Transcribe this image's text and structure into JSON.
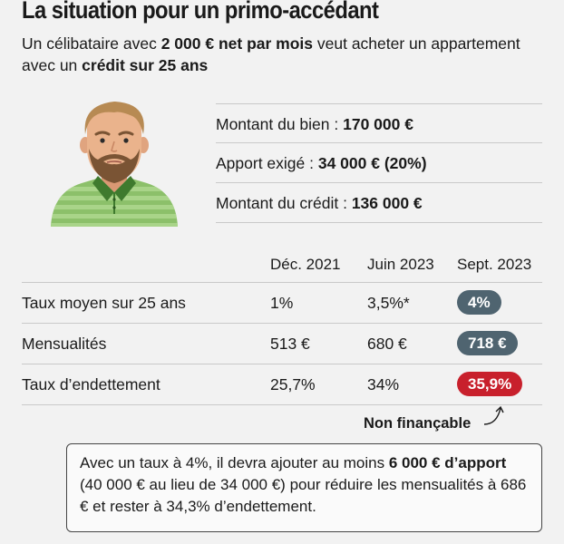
{
  "title": "La situation pour un primo-accédant",
  "subtitle": {
    "p1": "Un célibataire avec ",
    "b1": "2 000 € net par mois",
    "p2": " veut acheter un appartement avec un ",
    "b2": "crédit sur 25 ans"
  },
  "facts": [
    {
      "label": "Montant du bien : ",
      "value": "170 000 €"
    },
    {
      "label": "Apport exigé : ",
      "value": "34 000 € (20%)"
    },
    {
      "label": "Montant du crédit : ",
      "value": "136 000 €"
    }
  ],
  "table": {
    "columns": [
      "Déc. 2021",
      "Juin 2023",
      "Sept. 2023"
    ],
    "rows": [
      {
        "label": "Taux moyen sur 25 ans",
        "dec2021": "1%",
        "juin2023": "3,5%*",
        "sept2023": "4%"
      },
      {
        "label": "Mensualités",
        "dec2021": "513 €",
        "juin2023": "680 €",
        "sept2023": "718 €"
      },
      {
        "label": "Taux d’endettement",
        "dec2021": "25,7%",
        "juin2023": "34%",
        "sept2023": "35,9%"
      }
    ]
  },
  "annotation": "Non finançable",
  "colors": {
    "pill_grey": "#4f6470",
    "pill_red": "#c8202c"
  },
  "note": {
    "p1": "Avec un taux à 4%, il devra ajouter au moins ",
    "b1": "6 000 € d’apport",
    "p2": " (40 000 € au lieu de 34 000 €) pour réduire les mensualités à 686 € et rester à 34,3% d’endettement."
  }
}
